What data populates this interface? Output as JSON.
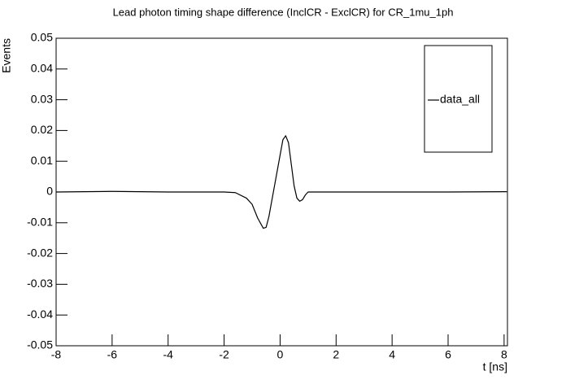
{
  "chart_data": {
    "type": "line",
    "title": "Lead photon timing shape difference (InclCR - ExclCR) for CR_1mu_1ph",
    "xlabel": "t [ns]",
    "ylabel": "Events",
    "x": [
      -8,
      -6,
      -4,
      -2,
      -1.6,
      -1.2,
      -1.0,
      -0.8,
      -0.6,
      -0.5,
      -0.4,
      -0.2,
      0,
      0.1,
      0.2,
      0.3,
      0.4,
      0.5,
      0.6,
      0.7,
      0.8,
      0.9,
      1.0,
      1.2,
      2,
      4,
      6,
      8.1
    ],
    "series": [
      {
        "name": "data_all",
        "color": "#000000",
        "values": [
          0,
          0.0002,
          0,
          0,
          -0.0002,
          -0.002,
          -0.004,
          -0.0085,
          -0.0118,
          -0.0115,
          -0.008,
          0.002,
          0.012,
          0.017,
          0.0183,
          0.016,
          0.009,
          0.002,
          -0.002,
          -0.003,
          -0.0025,
          -0.001,
          0,
          0,
          0,
          0,
          0,
          0.0001
        ]
      }
    ],
    "xlim": [
      -8,
      8.12
    ],
    "xticks": [
      -8,
      -6,
      -4,
      -2,
      0,
      2,
      4,
      6,
      8
    ],
    "ylim": [
      -0.05,
      0.05
    ],
    "yticks": [
      -0.05,
      -0.04,
      -0.03,
      -0.02,
      -0.01,
      0,
      0.01,
      0.02,
      0.03,
      0.04,
      0.05
    ],
    "grid": false,
    "legend": "upper right"
  }
}
